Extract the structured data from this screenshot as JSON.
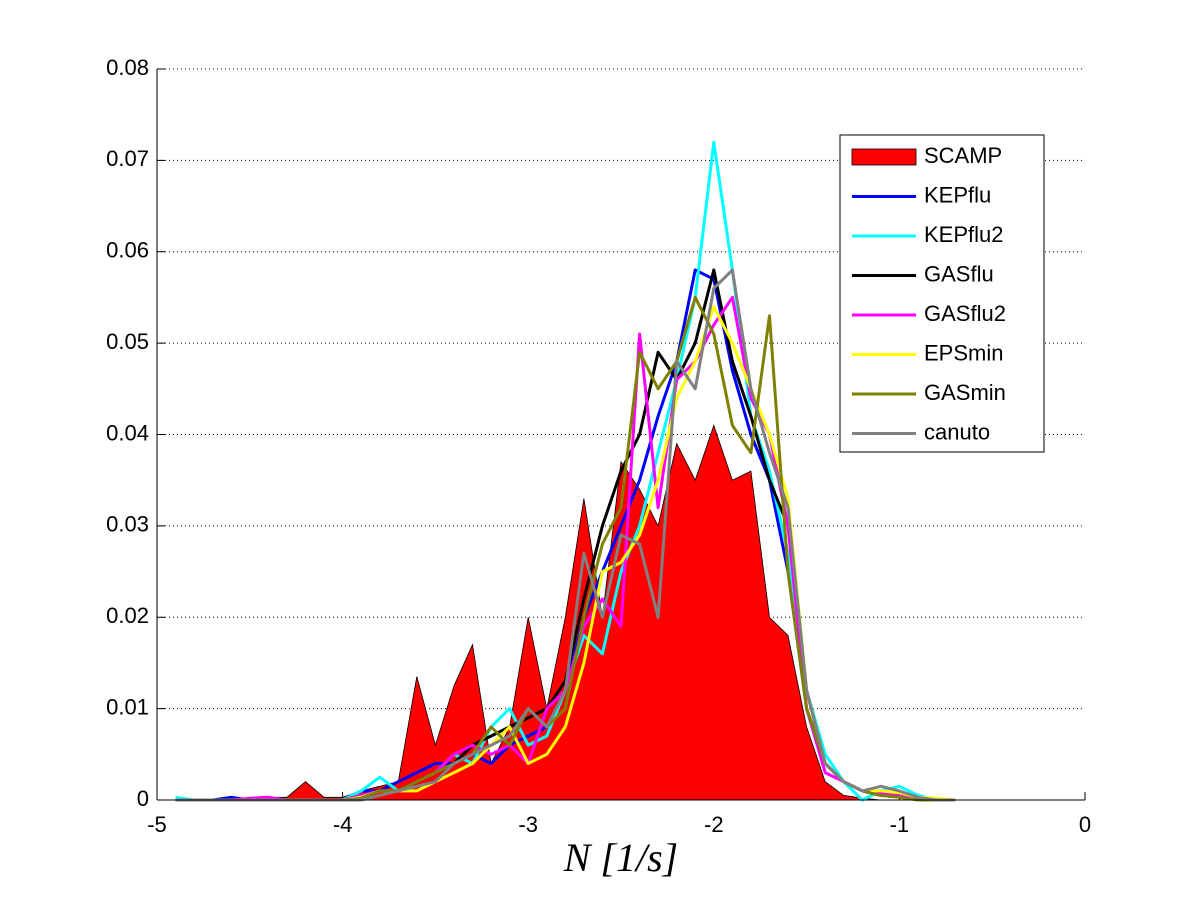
{
  "chart_data": {
    "type": "line",
    "xlabel": "N [1/s]",
    "x": [
      -4.9,
      -4.8,
      -4.7,
      -4.6,
      -4.5,
      -4.4,
      -4.3,
      -4.2,
      -4.1,
      -4.0,
      -3.9,
      -3.8,
      -3.7,
      -3.6,
      -3.5,
      -3.4,
      -3.3,
      -3.2,
      -3.1,
      -3.0,
      -2.9,
      -2.8,
      -2.7,
      -2.6,
      -2.5,
      -2.4,
      -2.3,
      -2.2,
      -2.1,
      -2.0,
      -1.9,
      -1.8,
      -1.7,
      -1.6,
      -1.5,
      -1.4,
      -1.3,
      -1.2,
      -1.1,
      -1.0,
      -0.9,
      -0.8,
      -0.7
    ],
    "series": [
      {
        "name": "SCAMP",
        "color": "#ff0000",
        "fill": true,
        "values": [
          0,
          0,
          0,
          0,
          0.0002,
          0.0003,
          0.0003,
          0.002,
          0.0003,
          0.0003,
          0.001,
          0.0015,
          0.002,
          0.0135,
          0.006,
          0.0125,
          0.017,
          0.004,
          0.008,
          0.02,
          0.01,
          0.02,
          0.033,
          0.02,
          0.037,
          0.034,
          0.03,
          0.039,
          0.035,
          0.041,
          0.035,
          0.036,
          0.02,
          0.018,
          0.008,
          0.002,
          0.0005,
          0.0002,
          0,
          0,
          0,
          0,
          0
        ]
      },
      {
        "name": "KEPflu",
        "color": "#0000ff",
        "values": [
          0,
          0,
          0,
          0.0003,
          0,
          0.0002,
          0,
          0,
          0,
          0,
          0.001,
          0.001,
          0.002,
          0.003,
          0.004,
          0.004,
          0.005,
          0.004,
          0.006,
          0.007,
          0.008,
          0.012,
          0.02,
          0.025,
          0.03,
          0.035,
          0.042,
          0.048,
          0.058,
          0.057,
          0.047,
          0.04,
          0.035,
          0.025,
          0.01,
          0.004,
          0.002,
          0.001,
          0.001,
          0.0005,
          0.0003,
          0,
          0
        ]
      },
      {
        "name": "KEPflu2",
        "color": "#00ffff",
        "values": [
          0.0003,
          0,
          0,
          0,
          0,
          0,
          0,
          0,
          0,
          0,
          0.001,
          0.0025,
          0.001,
          0.002,
          0.003,
          0.005,
          0.004,
          0.008,
          0.01,
          0.006,
          0.007,
          0.012,
          0.018,
          0.016,
          0.025,
          0.03,
          0.038,
          0.046,
          0.055,
          0.072,
          0.058,
          0.042,
          0.036,
          0.027,
          0.012,
          0.005,
          0.002,
          0,
          0.001,
          0.0015,
          0.0005,
          0,
          0
        ]
      },
      {
        "name": "GASflu",
        "color": "#000000",
        "values": [
          0,
          0,
          0,
          0,
          0,
          0,
          0,
          0,
          0,
          0,
          0.0005,
          0.001,
          0.001,
          0.002,
          0.003,
          0.004,
          0.006,
          0.007,
          0.008,
          0.009,
          0.01,
          0.013,
          0.022,
          0.03,
          0.036,
          0.04,
          0.049,
          0.046,
          0.05,
          0.058,
          0.048,
          0.042,
          0.035,
          0.03,
          0.012,
          0.004,
          0.002,
          0.001,
          0.0005,
          0.0005,
          0.0003,
          0,
          0
        ]
      },
      {
        "name": "GASflu2",
        "color": "#ff00ff",
        "values": [
          0,
          0,
          0,
          0,
          0.0002,
          0.0003,
          0,
          0,
          0,
          0,
          0.0005,
          0.001,
          0.001,
          0.002,
          0.003,
          0.005,
          0.006,
          0.005,
          0.006,
          0.004,
          0.01,
          0.012,
          0.019,
          0.022,
          0.019,
          0.051,
          0.032,
          0.046,
          0.048,
          0.052,
          0.055,
          0.044,
          0.04,
          0.03,
          0.01,
          0.003,
          0.002,
          0.001,
          0.0008,
          0.0005,
          0.0003,
          0,
          0
        ]
      },
      {
        "name": "EPSmin",
        "color": "#ffff00",
        "values": [
          0,
          0,
          0,
          0,
          0,
          0,
          0,
          0,
          0,
          0,
          0.0003,
          0.001,
          0.001,
          0.001,
          0.002,
          0.003,
          0.004,
          0.006,
          0.008,
          0.004,
          0.005,
          0.008,
          0.015,
          0.025,
          0.026,
          0.029,
          0.035,
          0.044,
          0.048,
          0.054,
          0.05,
          0.045,
          0.04,
          0.033,
          0.012,
          0.004,
          0.002,
          0.001,
          0.001,
          0.0008,
          0.0003,
          0.0002,
          0
        ]
      },
      {
        "name": "GASmin",
        "color": "#808000",
        "values": [
          0,
          0,
          0,
          0,
          0,
          0,
          0,
          0,
          0,
          0,
          0.0002,
          0.001,
          0.001,
          0.002,
          0.003,
          0.004,
          0.005,
          0.008,
          0.006,
          0.01,
          0.008,
          0.01,
          0.02,
          0.028,
          0.032,
          0.049,
          0.045,
          0.048,
          0.055,
          0.051,
          0.041,
          0.038,
          0.053,
          0.025,
          0.01,
          0.004,
          0.002,
          0.001,
          0.0005,
          0.0003,
          0,
          0,
          0
        ]
      },
      {
        "name": "canuto",
        "color": "#808080",
        "values": [
          0,
          0,
          0,
          0,
          0,
          0,
          0,
          0,
          0,
          0,
          0,
          0.0005,
          0.001,
          0.0015,
          0.002,
          0.004,
          0.005,
          0.006,
          0.007,
          0.01,
          0.008,
          0.012,
          0.027,
          0.02,
          0.029,
          0.028,
          0.02,
          0.048,
          0.045,
          0.056,
          0.058,
          0.045,
          0.038,
          0.032,
          0.012,
          0.004,
          0.002,
          0.001,
          0.0015,
          0.001,
          0.0003,
          0,
          0
        ]
      }
    ],
    "xlim": [
      -5,
      0
    ],
    "xticks": [
      -5,
      -4,
      -3,
      -2,
      -1,
      0
    ],
    "ylim": [
      0,
      0.08
    ],
    "yticks": [
      0,
      0.01,
      0.02,
      0.03,
      0.04,
      0.05,
      0.06,
      0.07,
      0.08
    ],
    "grid": true,
    "legend": "upper-right"
  }
}
